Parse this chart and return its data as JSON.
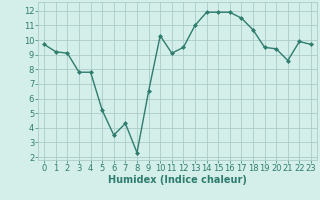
{
  "x": [
    0,
    1,
    2,
    3,
    4,
    5,
    6,
    7,
    8,
    9,
    10,
    11,
    12,
    13,
    14,
    15,
    16,
    17,
    18,
    19,
    20,
    21,
    22,
    23
  ],
  "y": [
    9.7,
    9.2,
    9.1,
    7.8,
    7.8,
    5.2,
    3.5,
    4.3,
    2.3,
    6.5,
    10.3,
    9.1,
    9.5,
    11.0,
    11.9,
    11.9,
    11.9,
    11.5,
    10.7,
    9.5,
    9.4,
    8.6,
    9.9,
    9.7
  ],
  "line_color": "#2e7d6e",
  "marker": "D",
  "markersize": 2,
  "linewidth": 1.0,
  "xlabel": "Humidex (Indice chaleur)",
  "xlim": [
    -0.5,
    23.5
  ],
  "ylim": [
    1.8,
    12.6
  ],
  "yticks": [
    2,
    3,
    4,
    5,
    6,
    7,
    8,
    9,
    10,
    11,
    12
  ],
  "xticks": [
    0,
    1,
    2,
    3,
    4,
    5,
    6,
    7,
    8,
    9,
    10,
    11,
    12,
    13,
    14,
    15,
    16,
    17,
    18,
    19,
    20,
    21,
    22,
    23
  ],
  "bg_color": "#d4eeea",
  "grid_color": "#aaccc8",
  "tick_color": "#2e7d6e",
  "xlabel_fontsize": 7,
  "tick_fontsize": 6
}
